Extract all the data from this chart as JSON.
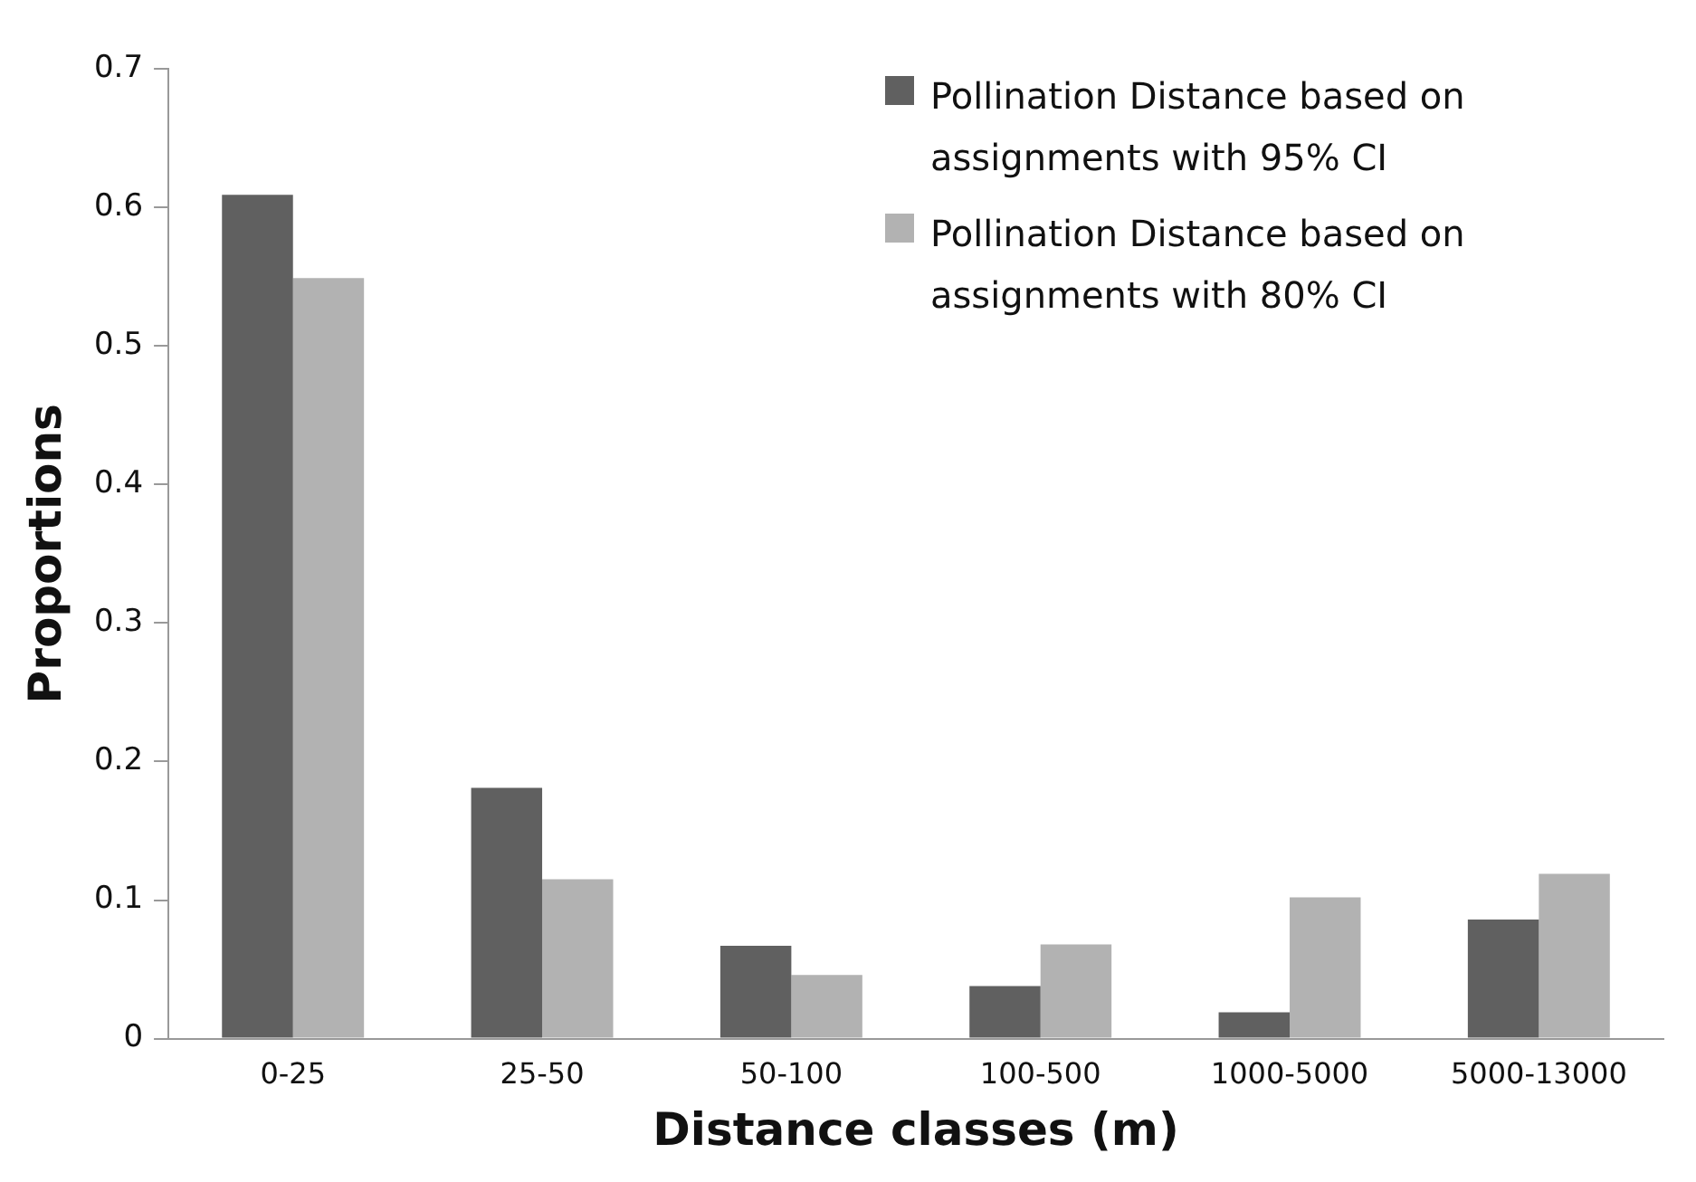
{
  "chart_data": {
    "type": "bar",
    "xlabel": "Distance classes (m)",
    "ylabel": "Proportions",
    "categories": [
      "0-25",
      "25-50",
      "50-100",
      "100-500",
      "1000-5000",
      "5000-13000"
    ],
    "series": [
      {
        "name": "Pollination Distance based on assignments with 95% CI",
        "color": "#606060",
        "values": [
          0.609,
          0.181,
          0.067,
          0.038,
          0.019,
          0.086
        ]
      },
      {
        "name": "Pollination Distance based on assignments with 80% CI",
        "color": "#b2b2b2",
        "values": [
          0.549,
          0.115,
          0.046,
          0.068,
          0.102,
          0.119
        ]
      }
    ],
    "ylim": [
      0,
      0.7
    ],
    "yticks": [
      0,
      0.1,
      0.2,
      0.3,
      0.4,
      0.5,
      0.6,
      0.7
    ],
    "grid": false,
    "legend": "top right"
  }
}
